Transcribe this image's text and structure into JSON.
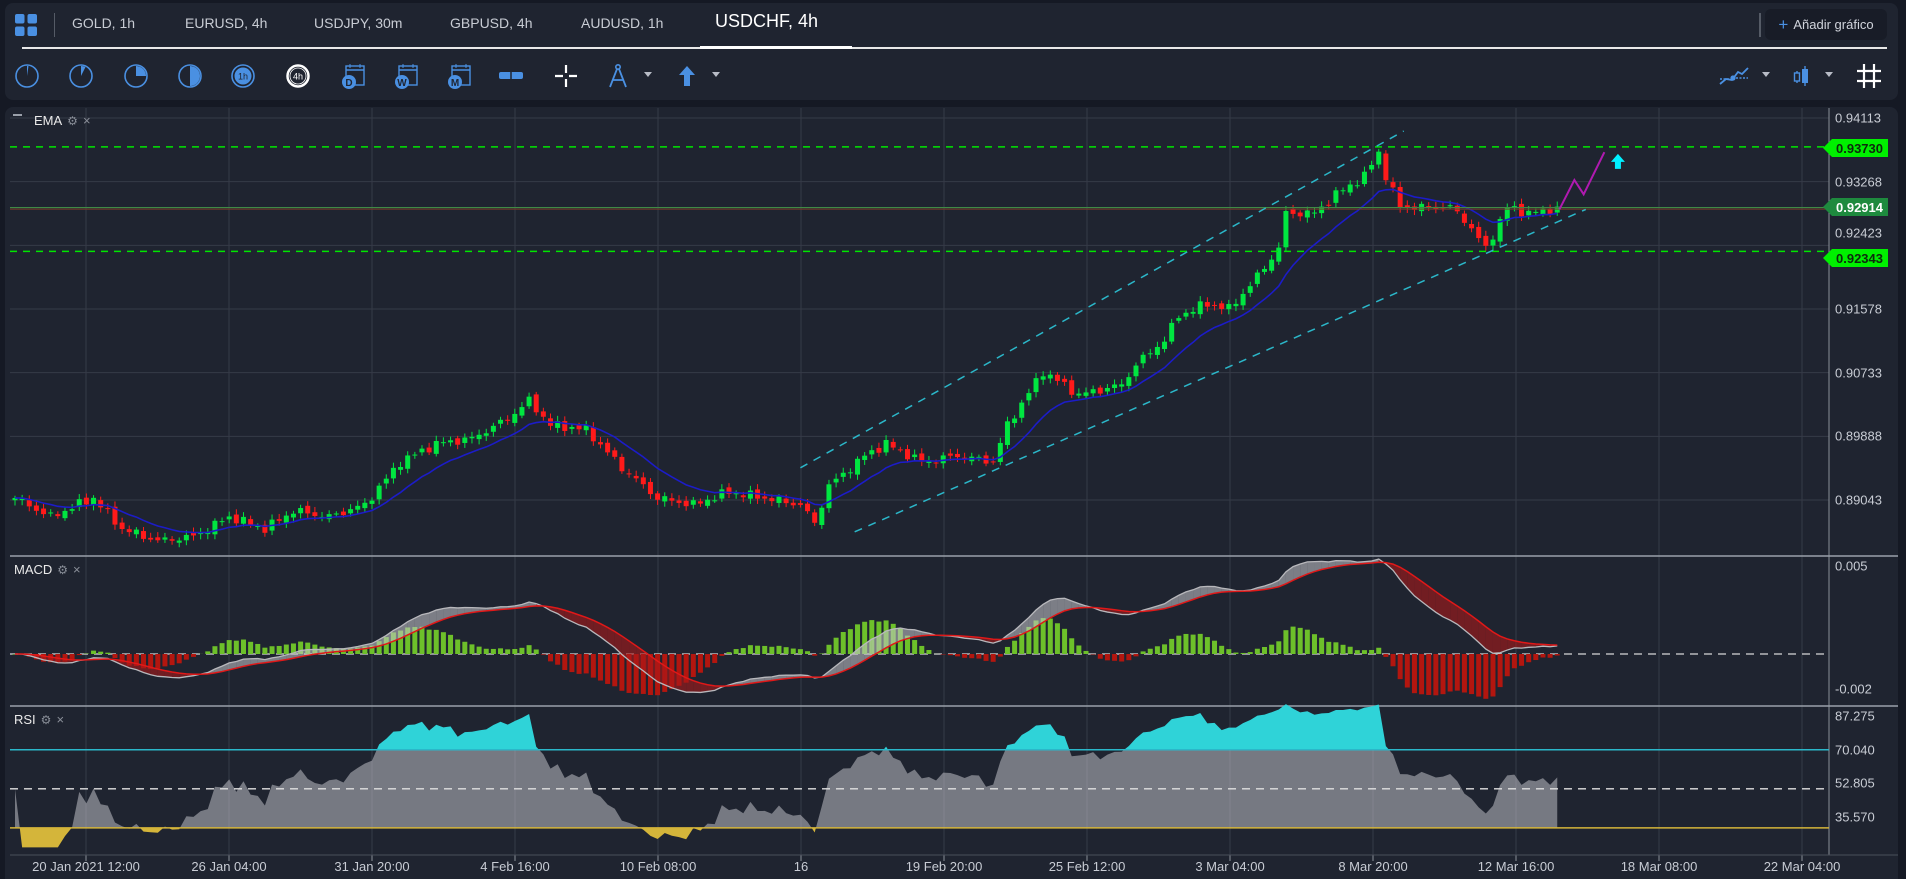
{
  "tabs": [
    {
      "label": "GOLD, 1h"
    },
    {
      "label": "EURUSD, 4h"
    },
    {
      "label": "USDJPY, 30m"
    },
    {
      "label": "GBPUSD, 4h"
    },
    {
      "label": "AUDUSD, 1h"
    },
    {
      "label": "USDCHF, 4h",
      "active": true
    }
  ],
  "add_chart_label": "Añadir gráfico",
  "toolbar": {
    "timeframes": [
      "1m-clock-icon",
      "5m-clock-icon",
      "15m-clock-icon",
      "30m-clock-icon",
      "1h",
      "4h"
    ],
    "tf_1h": "1h",
    "tf_4h": "4h",
    "cal_d": "D",
    "cal_w": "W",
    "cal_m": "M"
  },
  "colors": {
    "accent": "#4a90e2",
    "bull": "#00e640",
    "bear": "#ff1a1a",
    "ema": "#1c1cc8",
    "level": "#00e600",
    "channel": "#2bb7c9",
    "projection": "#b01ab0",
    "arrow": "#00f0ff",
    "rsi_upper": "#2bb7c9",
    "rsi_lower": "#d4b53a"
  },
  "panes": {
    "main": {
      "label": "EMA"
    },
    "macd": {
      "label": "MACD"
    },
    "rsi": {
      "label": "RSI"
    }
  },
  "axes": {
    "price_ticks": [
      "0.94113",
      "0.93268",
      "0.92423",
      "0.91578",
      "0.90733",
      "0.89888",
      "0.89043"
    ],
    "macd_ticks": [
      "0.005",
      "-0.002"
    ],
    "rsi_ticks": [
      "87.275",
      "70.040",
      "52.805",
      "35.570"
    ],
    "dates": [
      "20 Jan 2021 12:00",
      "26 Jan 04:00",
      "31 Jan 20:00",
      "4 Feb 16:00",
      "10 Feb 08:00",
      "16",
      "19 Feb 20:00",
      "25 Feb 12:00",
      "3 Mar 04:00",
      "8 Mar 20:00",
      "12 Mar 16:00",
      "18 Mar 08:00",
      "22 Mar 04:00"
    ]
  },
  "price_tags": [
    {
      "value": "0.93730",
      "kind": "level"
    },
    {
      "value": "0.92914",
      "kind": "last"
    },
    {
      "value": "0.92343",
      "kind": "level"
    }
  ],
  "chart_data": {
    "type": "candlestick",
    "symbol": "USDCHF",
    "timeframe": "4h",
    "ylim": [
      0.89043,
      0.94113
    ],
    "close_keypoints": [
      [
        0,
        0.8907
      ],
      [
        5,
        0.8882
      ],
      [
        11,
        0.8907
      ],
      [
        15,
        0.8866
      ],
      [
        20,
        0.885
      ],
      [
        25,
        0.8856
      ],
      [
        30,
        0.8882
      ],
      [
        35,
        0.8866
      ],
      [
        39,
        0.889
      ],
      [
        44,
        0.8882
      ],
      [
        49,
        0.8898
      ],
      [
        54,
        0.8955
      ],
      [
        59,
        0.8979
      ],
      [
        64,
        0.8986
      ],
      [
        69,
        0.9012
      ],
      [
        72,
        0.9036
      ],
      [
        75,
        0.9004
      ],
      [
        80,
        0.8998
      ],
      [
        85,
        0.8947
      ],
      [
        90,
        0.8907
      ],
      [
        95,
        0.8898
      ],
      [
        100,
        0.8915
      ],
      [
        105,
        0.8907
      ],
      [
        110,
        0.8898
      ],
      [
        112,
        0.8874
      ],
      [
        114,
        0.8923
      ],
      [
        119,
        0.8963
      ],
      [
        122,
        0.8979
      ],
      [
        127,
        0.8955
      ],
      [
        132,
        0.8963
      ],
      [
        137,
        0.8955
      ],
      [
        139,
        0.9004
      ],
      [
        144,
        0.9075
      ],
      [
        149,
        0.9044
      ],
      [
        155,
        0.9057
      ],
      [
        157,
        0.9084
      ],
      [
        161,
        0.9117
      ],
      [
        163,
        0.9149
      ],
      [
        167,
        0.9165
      ],
      [
        170,
        0.9158
      ],
      [
        173,
        0.9189
      ],
      [
        177,
        0.9238
      ],
      [
        178,
        0.9285
      ],
      [
        182,
        0.9285
      ],
      [
        185,
        0.931
      ],
      [
        189,
        0.9334
      ],
      [
        191,
        0.9366
      ],
      [
        192,
        0.9334
      ],
      [
        194,
        0.9293
      ],
      [
        197,
        0.9293
      ],
      [
        201,
        0.9293
      ],
      [
        203,
        0.9277
      ],
      [
        206,
        0.9238
      ],
      [
        209,
        0.9293
      ],
      [
        212,
        0.9285
      ],
      [
        216,
        0.9291
      ]
    ],
    "horizontal_levels": [
      {
        "price": 0.9373,
        "style": "dashed"
      },
      {
        "price": 0.92343,
        "style": "dashed"
      },
      {
        "price": 0.92914,
        "style": "solid"
      }
    ],
    "channel": [
      {
        "from": [
          110,
          0.8947
        ],
        "to": [
          194.5,
          0.9394
        ]
      },
      {
        "from": [
          117.6,
          0.8862
        ],
        "to": [
          220,
          0.929
        ]
      }
    ],
    "projection": [
      [
        216.3,
        0.929
      ],
      [
        218.4,
        0.9329
      ],
      [
        219.7,
        0.931
      ],
      [
        222.6,
        0.9366
      ]
    ],
    "signal_arrow": {
      "bar": 224.5,
      "price": 0.9353,
      "direction": "up"
    },
    "macd_ylim": [
      -0.002,
      0.005
    ],
    "rsi_levels": [
      70,
      50,
      30
    ],
    "rsi_ylim": [
      35.57,
      87.275
    ]
  }
}
